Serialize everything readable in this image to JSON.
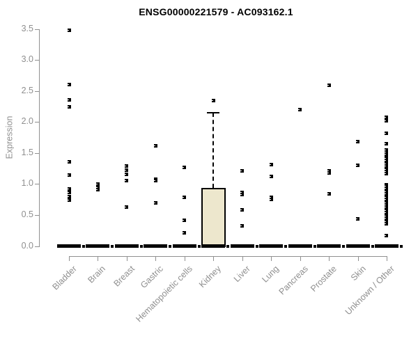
{
  "chart_data": {
    "type": "boxplot",
    "title": "ENSG00000221579 - AC093162.1",
    "ylabel": "Expression",
    "xlabel": "",
    "ylim": [
      0.0,
      3.5
    ],
    "yticks": [
      "0.0",
      "0.5",
      "1.0",
      "1.5",
      "2.0",
      "2.5",
      "3.0",
      "3.5"
    ],
    "grid": false,
    "legend": "none",
    "colors": {
      "axis": "#8f8f8f",
      "points": "#000000",
      "box_fill": "#EDE7CD",
      "box_border": "#000000",
      "title": "#000000"
    },
    "categories": [
      "Bladder",
      "Brain",
      "Breast",
      "Gastric",
      "Hematopoietic cells",
      "Kidney",
      "Liver",
      "Lung",
      "Pancreas",
      "Prostate",
      "Skin",
      "Unknown / Other"
    ],
    "series": [
      {
        "category": "Bladder",
        "q1": 0,
        "median": 0,
        "q3": 0,
        "whisker_low": 0,
        "whisker_high": 0,
        "points": [
          3.48,
          2.6,
          2.36,
          2.24,
          1.36,
          1.14,
          0.92,
          0.86,
          0.8,
          0.76,
          0.74
        ]
      },
      {
        "category": "Brain",
        "q1": 0,
        "median": 0,
        "q3": 0,
        "whisker_low": 0,
        "whisker_high": 0,
        "points": [
          1.0,
          0.97,
          0.94,
          0.91
        ]
      },
      {
        "category": "Breast",
        "q1": 0,
        "median": 0,
        "q3": 0,
        "whisker_low": 0,
        "whisker_high": 0,
        "points": [
          1.29,
          1.22,
          1.15,
          1.05,
          0.63
        ]
      },
      {
        "category": "Gastric",
        "q1": 0,
        "median": 0,
        "q3": 0,
        "whisker_low": 0,
        "whisker_high": 0,
        "points": [
          1.61,
          1.08,
          1.05,
          0.69
        ]
      },
      {
        "category": "Hematopoietic cells",
        "q1": 0,
        "median": 0,
        "q3": 0,
        "whisker_low": 0,
        "whisker_high": 0,
        "points": [
          1.27,
          0.78,
          0.42,
          0.21
        ]
      },
      {
        "category": "Kidney",
        "q1": 0,
        "median": 0,
        "q3": 0.94,
        "whisker_low": 0,
        "whisker_high": 2.15,
        "points": [
          2.35
        ]
      },
      {
        "category": "Liver",
        "q1": 0,
        "median": 0,
        "q3": 0,
        "whisker_low": 0,
        "whisker_high": 0,
        "points": [
          1.21,
          0.86,
          0.83,
          0.58,
          0.33
        ]
      },
      {
        "category": "Lung",
        "q1": 0,
        "median": 0,
        "q3": 0,
        "whisker_low": 0,
        "whisker_high": 0,
        "points": [
          1.31,
          1.12,
          0.78,
          0.75
        ]
      },
      {
        "category": "Pancreas",
        "q1": 0,
        "median": 0,
        "q3": 0,
        "whisker_low": 0,
        "whisker_high": 0,
        "points": [
          2.2
        ]
      },
      {
        "category": "Prostate",
        "q1": 0,
        "median": 0,
        "q3": 0,
        "whisker_low": 0,
        "whisker_high": 0,
        "points": [
          2.59,
          1.21,
          1.18,
          0.84
        ]
      },
      {
        "category": "Skin",
        "q1": 0,
        "median": 0,
        "q3": 0,
        "whisker_low": 0,
        "whisker_high": 0,
        "points": [
          1.68,
          1.3,
          0.44
        ]
      },
      {
        "category": "Unknown / Other",
        "q1": 0,
        "median": 0,
        "q3": 0,
        "whisker_low": 0,
        "whisker_high": 0,
        "points": [
          2.08,
          2.02,
          1.82,
          1.65,
          1.55,
          1.52,
          1.48,
          1.44,
          1.41,
          1.38,
          1.35,
          1.32,
          1.29,
          1.26,
          1.23,
          1.2,
          1.17,
          0.99,
          0.96,
          0.93,
          0.9,
          0.87,
          0.84,
          0.81,
          0.78,
          0.75,
          0.72,
          0.69,
          0.66,
          0.63,
          0.6,
          0.57,
          0.54,
          0.51,
          0.48,
          0.45,
          0.42,
          0.39,
          0.36,
          0.17
        ]
      }
    ]
  }
}
